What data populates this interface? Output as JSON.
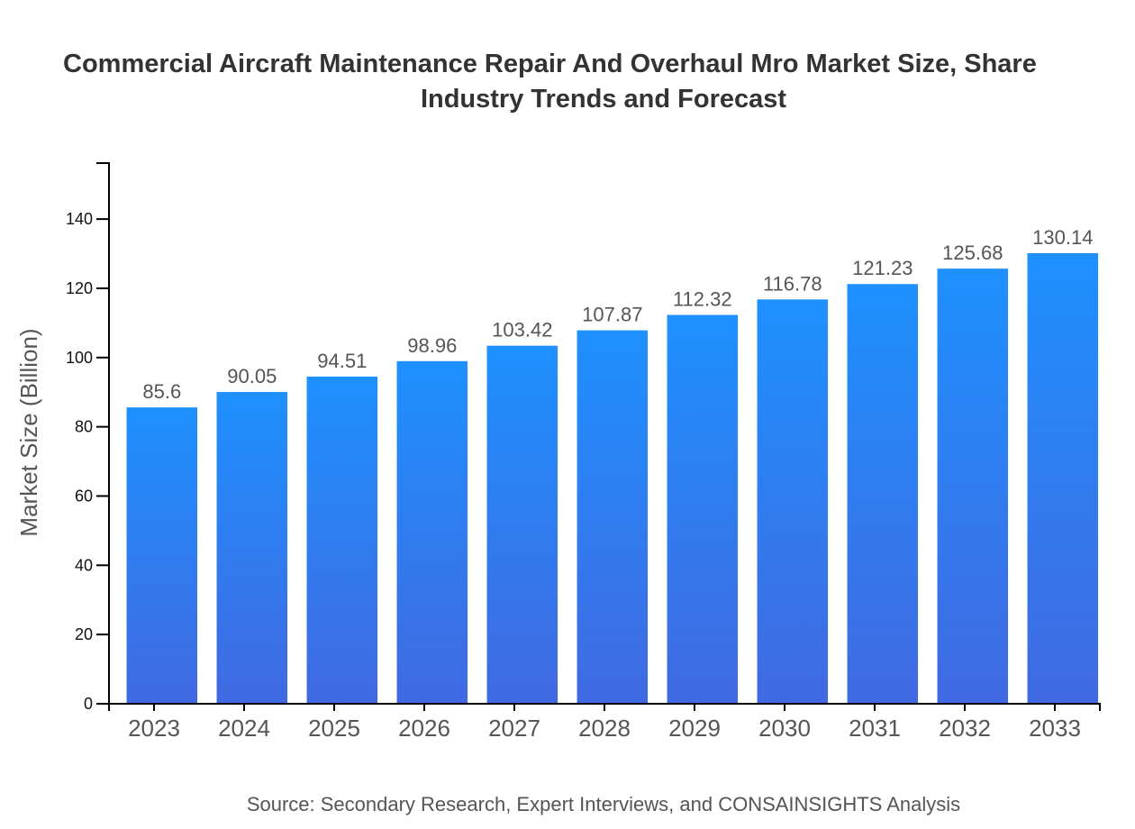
{
  "chart_data": {
    "type": "bar",
    "title_lines": [
      "Commercial Aircraft Maintenance Repair And Overhaul Mro Market Size, Share",
      "Industry Trends and Forecast"
    ],
    "categories": [
      "2023",
      "2024",
      "2025",
      "2026",
      "2027",
      "2028",
      "2029",
      "2030",
      "2031",
      "2032",
      "2033"
    ],
    "values": [
      85.6,
      90.05,
      94.51,
      98.96,
      103.42,
      107.87,
      112.32,
      116.78,
      121.23,
      125.68,
      130.14
    ],
    "data_labels": [
      "85.6",
      "90.05",
      "94.51",
      "98.96",
      "103.42",
      "107.87",
      "112.32",
      "116.78",
      "121.23",
      "125.68",
      "130.14"
    ],
    "xlabel": "",
    "ylabel": "Market Size (Billion)",
    "ylim": [
      0,
      156.17
    ],
    "yticks": [
      0,
      20,
      40,
      60,
      80,
      100,
      120,
      140
    ],
    "grid": false,
    "colors": {
      "bar_top": "#1e90ff",
      "bar_bottom": "#4169e1",
      "axis": "#000000"
    },
    "source": "Source: Secondary Research, Expert Interviews, and CONSAINSIGHTS Analysis"
  }
}
